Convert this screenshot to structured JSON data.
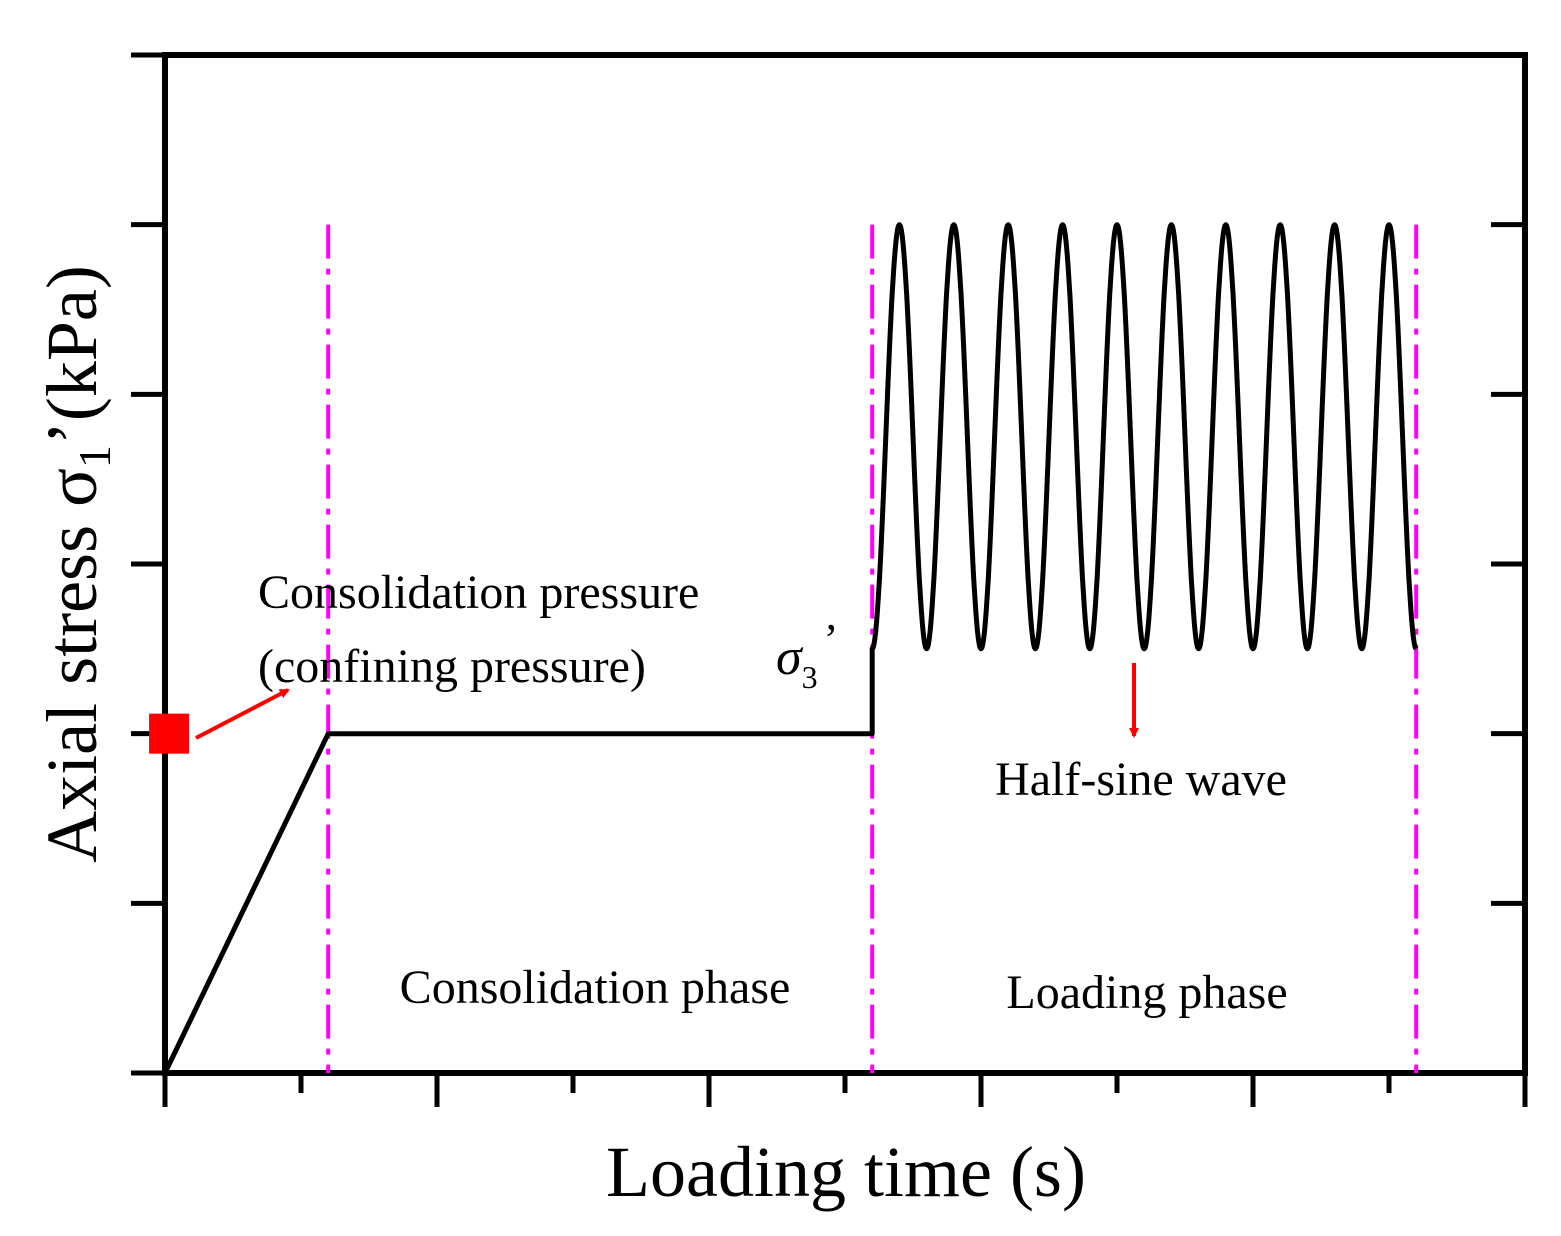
{
  "colors": {
    "axis": "#000000",
    "series_line": "#000000",
    "phase_divider": "#ff00ff",
    "marker": "#ff0000",
    "annotation_arrow": "#ff0000"
  },
  "chart_data": {
    "type": "line",
    "title": "",
    "xlabel": "Loading time (s)",
    "ylabel": {
      "prefix": "Axial stress  ",
      "symbol": "σ",
      "subscript": "1",
      "prime": "’",
      "unit": "(kPa)"
    },
    "xlim": [
      0,
      10
    ],
    "ylim": [
      0,
      6
    ],
    "show_tick_labels": false,
    "x_major_ticks": [
      0,
      2,
      4,
      6,
      8,
      10
    ],
    "x_minor_ticks": [
      1,
      3,
      5,
      7,
      9
    ],
    "y_major_ticks": [
      0,
      1,
      2,
      3,
      4,
      5,
      6
    ],
    "series": [
      {
        "name": "Axial stress",
        "segments": [
          {
            "kind": "ramp",
            "from": [
              0,
              0
            ],
            "to": [
              1.2,
              2
            ]
          },
          {
            "kind": "constant",
            "from": [
              1.2,
              2
            ],
            "to": [
              5.2,
              2
            ]
          },
          {
            "kind": "step",
            "from": [
              5.2,
              2
            ],
            "to": [
              5.2,
              2.5
            ]
          },
          {
            "kind": "half-sine-cycles",
            "x_start": 5.2,
            "x_end": 9.2,
            "min": 2.5,
            "max": 5,
            "cycles": 10
          }
        ]
      }
    ],
    "phase_dividers_x": [
      1.2,
      5.2,
      9.2
    ],
    "divider_top_y": 5,
    "marker": {
      "shape": "square",
      "x": 0.03,
      "y": 2
    },
    "annotations": {
      "consolidation_pressure_line1": "Consolidation pressure",
      "consolidation_pressure_line2": "(confining pressure)",
      "sigma3": {
        "symbol": "σ",
        "subscript": "3",
        "prime": "’"
      },
      "half_sine_wave": "Half-sine wave",
      "consolidation_phase": "Consolidation phase",
      "loading_phase": "Loading phase"
    }
  }
}
